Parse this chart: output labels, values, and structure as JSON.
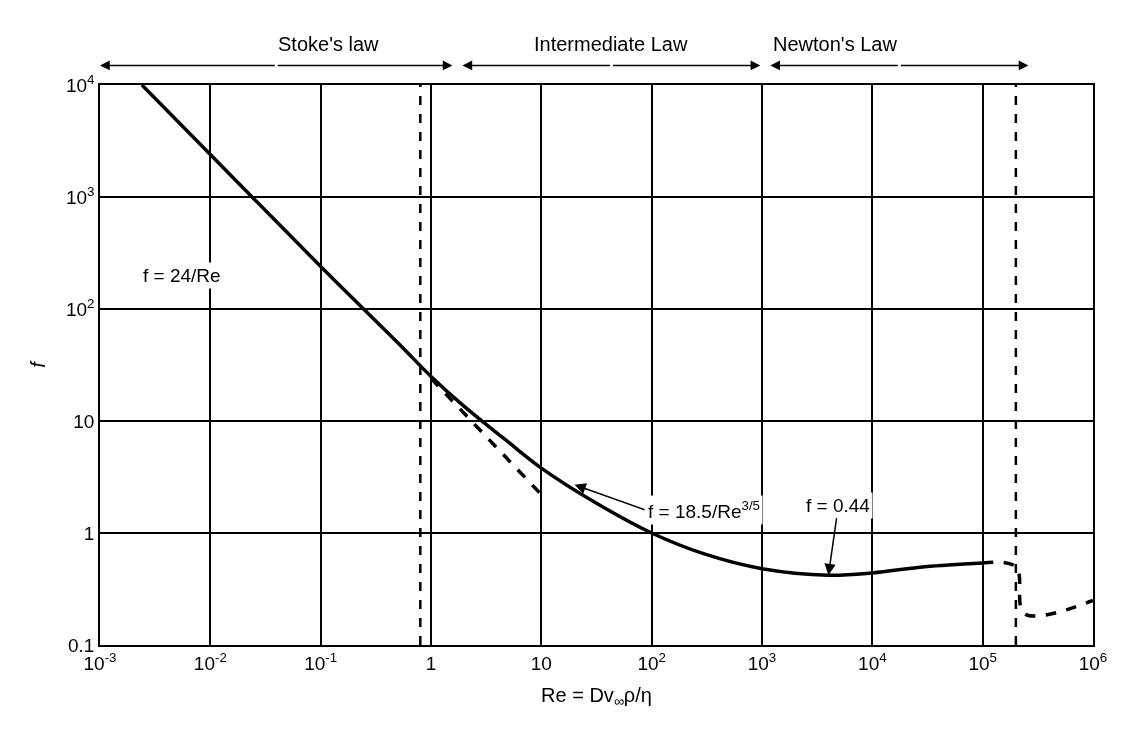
{
  "chart_data": {
    "type": "line",
    "xlabel": "Re = Dv$_{∞}$ρ/η",
    "ylabel": "f",
    "log": "xy",
    "grid": true,
    "marker": "none",
    "xlim": [
      0.001,
      1000000
    ],
    "xticks": [
      {
        "value": 0.001,
        "label": "10$^{-3}$"
      },
      {
        "value": 0.01,
        "label": "10$^{-2}$"
      },
      {
        "value": 0.1,
        "label": "10$^{-1}$"
      },
      1,
      10,
      {
        "value": 100,
        "label": "10$^{2}$"
      },
      {
        "value": 1000,
        "label": "10$^{3}$"
      },
      {
        "value": 10000,
        "label": "10$^{4}$"
      },
      {
        "value": 100000,
        "label": "10$^{5}$"
      },
      {
        "value": 1000000,
        "label": "10$^{6}$"
      }
    ],
    "ylim": [
      0.1,
      10000
    ],
    "yticks": [
      0.1,
      1,
      10,
      {
        "value": 100,
        "label": "10$^{2}$"
      },
      {
        "value": 1000,
        "label": "10$^{3}$"
      },
      {
        "value": 10000,
        "label": "10$^{4}$"
      }
    ],
    "series": [
      {
        "color": "#000000",
        "line_style": "solid",
        "x": [
          0.0024,
          0.01,
          0.1,
          0.5,
          1,
          2,
          5,
          10,
          30,
          100,
          300,
          1000,
          4000,
          10000,
          30000,
          100000
        ],
        "values": [
          10000,
          2400,
          240,
          50,
          25,
          13.5,
          6.5,
          3.8,
          1.9,
          1.0,
          0.65,
          0.48,
          0.42,
          0.44,
          0.5,
          0.54
        ]
      },
      {
        "color": "#000000",
        "line_style": "dashed",
        "x": [
          1,
          10
        ],
        "values": [
          24,
          2.2
        ]
      },
      {
        "color": "#000000",
        "line_style": "dashed",
        "x": [
          100000,
          200000,
          240000,
          1000000
        ],
        "values": [
          0.54,
          0.5,
          0.19,
          0.25
        ]
      }
    ],
    "ref_lines": [
      {
        "axis": "x",
        "value": 0.8,
        "color": "#000000",
        "line_style": "dashed"
      },
      {
        "axis": "x",
        "value": 200000,
        "color": "#000000",
        "line_style": "dashed"
      }
    ],
    "annotations": [
      "Stoke's law",
      "Intermediate Law",
      "Newton's Law",
      "f = 24/Re",
      {
        "text": "f = 18.5/Re$^{3/5}$",
        "x": 20,
        "y": 2.7
      },
      {
        "text": "f = 0.44",
        "x": 4000,
        "y": 0.42
      }
    ]
  }
}
